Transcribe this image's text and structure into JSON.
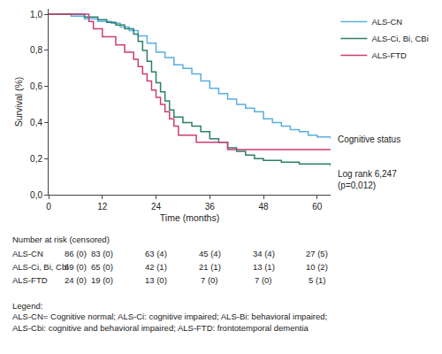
{
  "chart_data": {
    "type": "line",
    "line_style": "step",
    "grid": false,
    "x_label": "Time (months)",
    "y_label": "Survival (%)",
    "xlim": [
      0,
      63
    ],
    "xticks": [
      0,
      12,
      24,
      36,
      48,
      60
    ],
    "ylim": [
      0,
      1.03
    ],
    "yticks": [
      {
        "value": 0,
        "label": "0,0"
      },
      {
        "value": 0.2,
        "label": "0,2"
      },
      {
        "value": 0.4,
        "label": "0,4"
      },
      {
        "value": 0.6,
        "label": "0,6"
      },
      {
        "value": 0.8,
        "label": "0,8"
      },
      {
        "value": 1.0,
        "label": "1,0"
      }
    ],
    "legend": "upper right",
    "series": [
      {
        "name": "ALS-CN",
        "color": "#5aaee0",
        "x": [
          0,
          5,
          8,
          11,
          14,
          16,
          18,
          20,
          22,
          24,
          26,
          28,
          30,
          32,
          34,
          36,
          38,
          40,
          42,
          44,
          46,
          48,
          50,
          52,
          54,
          56,
          58,
          60,
          63
        ],
        "values": [
          1,
          0.99,
          0.975,
          0.96,
          0.95,
          0.93,
          0.91,
          0.88,
          0.84,
          0.79,
          0.76,
          0.72,
          0.7,
          0.67,
          0.63,
          0.59,
          0.56,
          0.53,
          0.5,
          0.48,
          0.46,
          0.42,
          0.4,
          0.38,
          0.36,
          0.35,
          0.33,
          0.32,
          0.31
        ]
      },
      {
        "name": "ALS-Ci, Bi, CBi",
        "color": "#2a7f6a",
        "x": [
          0,
          8,
          11,
          13,
          15,
          17,
          19,
          20,
          21,
          22,
          23,
          24,
          25,
          26,
          27,
          28,
          30,
          32,
          34,
          36,
          38,
          40,
          42,
          44,
          46,
          48,
          52,
          56,
          63
        ],
        "values": [
          1,
          0.985,
          0.97,
          0.955,
          0.94,
          0.92,
          0.89,
          0.85,
          0.8,
          0.74,
          0.68,
          0.62,
          0.57,
          0.52,
          0.47,
          0.43,
          0.4,
          0.38,
          0.35,
          0.31,
          0.29,
          0.26,
          0.24,
          0.22,
          0.2,
          0.19,
          0.18,
          0.17,
          0.16
        ]
      },
      {
        "name": "ALS-FTD",
        "color": "#cc3e72",
        "x": [
          0,
          9,
          10,
          12,
          15,
          17,
          19,
          20,
          21,
          22,
          23,
          24,
          25,
          26,
          27,
          28,
          29,
          33,
          40,
          63
        ],
        "values": [
          1,
          0.96,
          0.92,
          0.875,
          0.83,
          0.79,
          0.75,
          0.71,
          0.67,
          0.63,
          0.58,
          0.54,
          0.5,
          0.46,
          0.42,
          0.38,
          0.33,
          0.29,
          0.25,
          0.25
        ]
      }
    ],
    "annotations": [
      {
        "lines": [
          "Cognitive status"
        ]
      },
      {
        "lines": [
          "Log rank 6,247",
          "(p=0,012)"
        ]
      }
    ],
    "risk_table": {
      "title": "Number at risk (censored)",
      "x": [
        0,
        12,
        24,
        36,
        48,
        60
      ],
      "rows": [
        {
          "name": "ALS-CN",
          "cells": [
            "86 (0)",
            "83 (0)",
            "63 (4)",
            "45 (4)",
            "34 (4)",
            "27 (5)"
          ]
        },
        {
          "name": "ALS-Ci, Bi, Cbi",
          "cells": [
            "69 (0)",
            "65 (0)",
            "42 (1)",
            "21 (1)",
            "13 (1)",
            "10 (2)"
          ]
        },
        {
          "name": "ALS-FTD",
          "cells": [
            "24 (0)",
            "19 (0)",
            "13 (0)",
            "7 (0)",
            "7 (0)",
            "5 (1)"
          ]
        }
      ]
    },
    "legend_note": [
      "Legend:",
      "ALS-CN= Cognitive normal; ALS-Ci: cognitive impaired; ALS-Bi: behavioral impaired;",
      "ALS-Cbi: cognitive and behavioral impaired; ALS-FTD: frontotemporal dementia"
    ]
  }
}
